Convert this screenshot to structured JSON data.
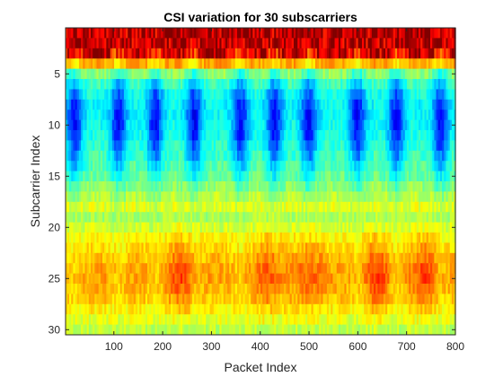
{
  "chart_data": {
    "type": "heatmap",
    "title": "CSI variation for 30 subscarriers",
    "xlabel": "Packet Index",
    "ylabel": "Subcarrier Index",
    "xlim": [
      1,
      800
    ],
    "ylim": [
      0.5,
      30.5
    ],
    "y_reversed": true,
    "x_ticks": [
      100,
      200,
      300,
      400,
      500,
      600,
      700,
      800
    ],
    "y_ticks": [
      5,
      10,
      15,
      20,
      25,
      30
    ],
    "colormap": "jet",
    "color_range": [
      0,
      1
    ],
    "n_packets": 800,
    "n_subcarriers": 30,
    "columns_per_block": 4,
    "dip_centers": [
      20,
      110,
      185,
      265,
      360,
      430,
      500,
      600,
      680,
      770
    ],
    "bright_band_centers": [
      240,
      420,
      500,
      640,
      740
    ],
    "row_profile": [
      1.0,
      0.98,
      0.88,
      0.62,
      0.42,
      0.34,
      0.3,
      0.28,
      0.28,
      0.29,
      0.3,
      0.32,
      0.34,
      0.36,
      0.38,
      0.42,
      0.46,
      0.5,
      0.54,
      0.58,
      0.63,
      0.66,
      0.69,
      0.71,
      0.72,
      0.7,
      0.68,
      0.64,
      0.6,
      0.56
    ]
  }
}
